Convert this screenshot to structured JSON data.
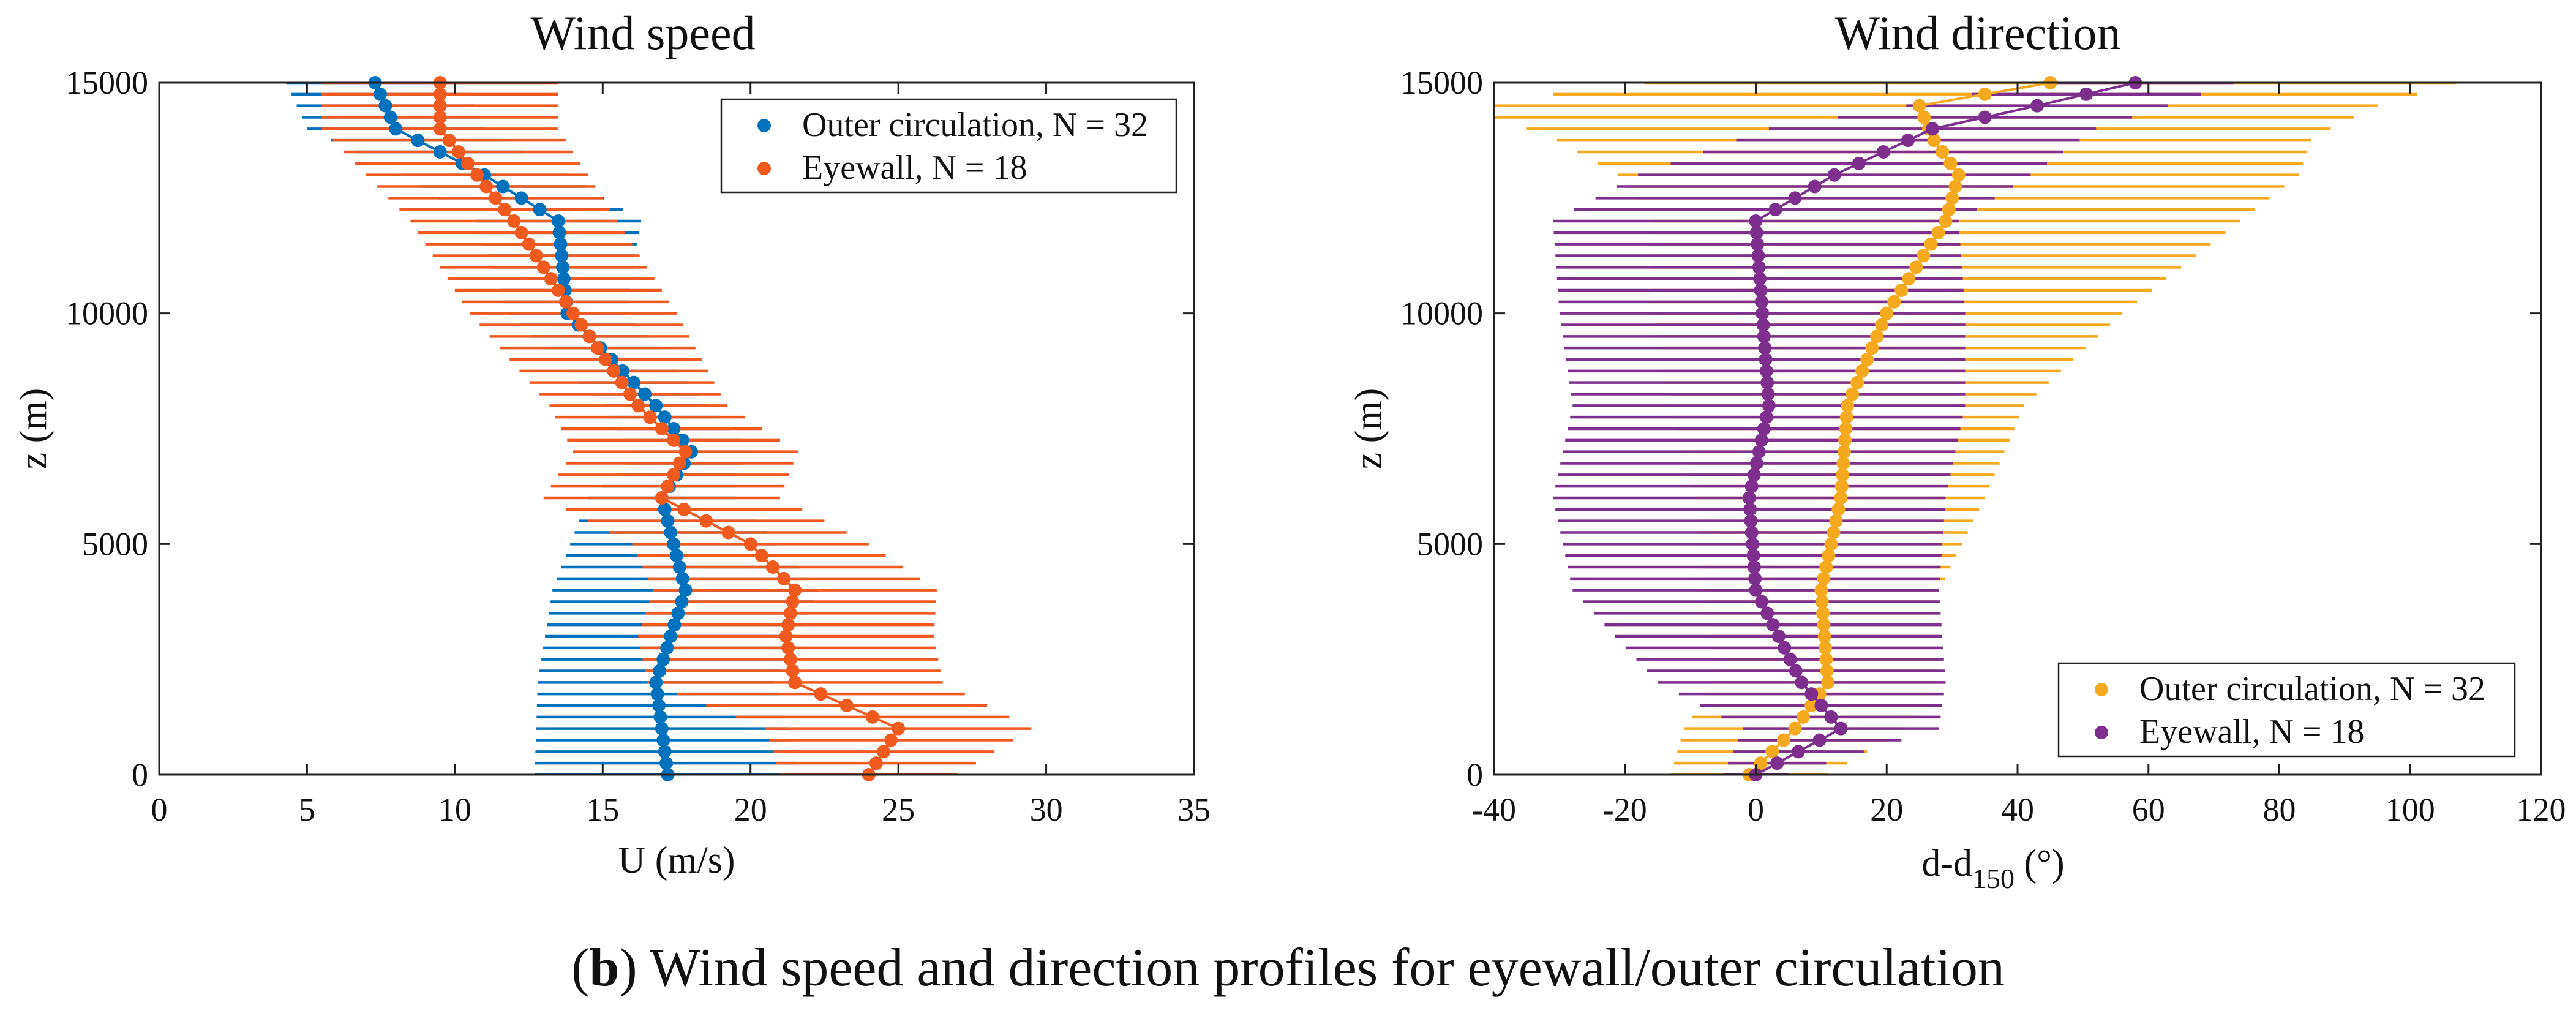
{
  "figure_caption": {
    "label": "b",
    "text": "Wind speed and direction profiles for eyewall/outer circulation"
  },
  "chart_data": [
    {
      "type": "line",
      "title": "Wind speed",
      "xlabel": "U (m/s)",
      "ylabel": "z (m)",
      "xlim": [
        0,
        35
      ],
      "ylim": [
        0,
        15000
      ],
      "xticks": [
        0,
        5,
        10,
        15,
        20,
        25,
        30,
        35
      ],
      "yticks": [
        0,
        5000,
        10000,
        15000
      ],
      "legend_position": "top-right",
      "grid": false,
      "series": [
        {
          "name": "Outer circulation, N = 32",
          "color": "#0072BD",
          "z": [
            0,
            2000,
            4000,
            6000,
            6500,
            7000,
            8000,
            10000,
            12000,
            13000,
            14000,
            15000
          ],
          "mean": [
            17.2,
            16.8,
            17.8,
            17.0,
            17.5,
            18.0,
            16.8,
            13.8,
            13.5,
            11.0,
            8.0,
            7.3
          ],
          "spread": [
            4.5,
            4.0,
            4.5,
            2.5,
            2.0,
            2.0,
            1.8,
            2.0,
            2.8,
            2.8,
            3.0,
            3.0
          ]
        },
        {
          "name": "Eyewall, N = 18",
          "color": "#F05A1E",
          "z": [
            0,
            1000,
            2000,
            3000,
            4000,
            5000,
            6000,
            7000,
            8000,
            10000,
            12000,
            14000,
            15000
          ],
          "mean": [
            24.0,
            25.0,
            21.5,
            21.2,
            21.5,
            20.0,
            17.0,
            17.8,
            16.2,
            14.0,
            12.0,
            9.5,
            9.5
          ],
          "spread": [
            3.0,
            4.5,
            5.0,
            5.0,
            4.8,
            4.0,
            4.0,
            3.8,
            3.0,
            3.5,
            3.5,
            4.0,
            4.0
          ]
        }
      ]
    },
    {
      "type": "line",
      "title": "Wind direction",
      "xlabel": "d-d",
      "xlabel_subscript": "150",
      "xlabel_unit": "(°)",
      "ylabel": "z (m)",
      "xlim": [
        -40,
        120
      ],
      "ylim": [
        0,
        15000
      ],
      "xticks": [
        -40,
        -20,
        0,
        20,
        40,
        60,
        80,
        100,
        120
      ],
      "yticks": [
        0,
        5000,
        10000,
        15000
      ],
      "legend_position": "bottom-right",
      "grid": false,
      "series": [
        {
          "name": "Outer circulation, N = 32",
          "color": "#F5A91E",
          "z": [
            0,
            1000,
            2000,
            4000,
            6000,
            8000,
            10000,
            12000,
            13000,
            13800,
            14500,
            15000
          ],
          "mean": [
            -1.0,
            6.0,
            11.0,
            10.0,
            13.0,
            14.0,
            20.0,
            29.0,
            31.0,
            27.0,
            25.0,
            45.0
          ],
          "spread": [
            12.0,
            17.0,
            17.0,
            18.0,
            22.0,
            27.0,
            36.0,
            45.0,
            52.0,
            58.0,
            70.0,
            62.0
          ]
        },
        {
          "name": "Eyewall, N = 18",
          "color": "#7E2F8E",
          "z": [
            0,
            1000,
            2000,
            4000,
            6000,
            8000,
            10000,
            12000,
            13000,
            14000,
            14500,
            15000
          ],
          "mean": [
            0.0,
            13.0,
            7.0,
            0.0,
            -1.0,
            2.0,
            1.0,
            0.0,
            12.0,
            27.0,
            43.0,
            58.0
          ],
          "spread": [
            5.0,
            15.0,
            22.0,
            28.0,
            30.0,
            30.0,
            31.0,
            31.0,
            30.0,
            25.0,
            20.0,
            15.0
          ]
        }
      ]
    }
  ]
}
